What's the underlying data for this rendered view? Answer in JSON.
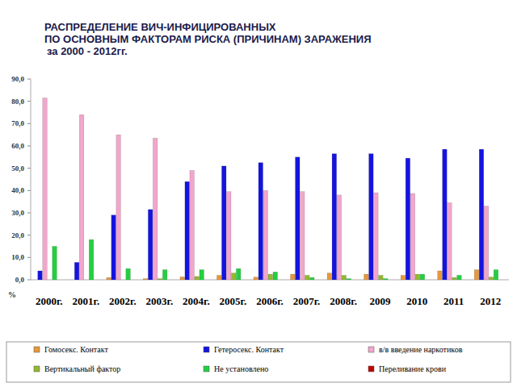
{
  "chart_data": {
    "type": "bar",
    "title": [
      "РАСПРЕДЕЛЕНИЕ ВИЧ-ИНФИЦИРОВАННЫХ",
      "ПО ОСНОВНЫМ ФАКТОРАМ РИСКА (ПРИЧИНАМ)  ЗАРАЖЕНИЯ"
    ],
    "subtitle": "за 2000 - 2012гг.",
    "y_label": "%",
    "categories": [
      "2000г.",
      "2001г.",
      "2002г.",
      "2003г.",
      "2004г.",
      "2005г.",
      "2006г.",
      "2007г.",
      "2008г.",
      "2009",
      "2010",
      "2011",
      "2012"
    ],
    "series": [
      {
        "name": "Гомосекс. Контакт",
        "color": "#e8983c",
        "values": [
          0,
          0,
          1,
          0.5,
          1.3,
          2,
          1.2,
          2.5,
          3,
          2.5,
          2,
          4,
          4.5
        ]
      },
      {
        "name": "Гетеросекс. Контакт",
        "color": "#1414e0",
        "values": [
          4,
          7.8,
          29,
          31.5,
          44,
          51,
          52.5,
          55,
          56.5,
          56.5,
          54.5,
          58.5,
          58.5
        ]
      },
      {
        "name": "в/в введение наркотиков",
        "color": "#f2a6cc",
        "values": [
          81.5,
          74,
          65,
          63.5,
          49,
          39.5,
          40,
          39.5,
          38,
          39,
          38.7,
          34.5,
          33
        ]
      },
      {
        "name": "Вертикальный фактор",
        "color": "#94b830",
        "values": [
          0,
          0,
          0,
          0.5,
          1.5,
          3,
          2.5,
          2,
          2,
          2,
          2.5,
          1,
          1.2
        ]
      },
      {
        "name": "Не установлено",
        "color": "#22d040",
        "values": [
          15,
          18,
          5,
          4.5,
          4.5,
          5,
          3.5,
          1,
          0.5,
          0.5,
          2.5,
          2,
          4.5
        ]
      },
      {
        "name": "Переливание крови",
        "color": "#c00000",
        "values": [
          0,
          0,
          0,
          0,
          0,
          0,
          0,
          0,
          0,
          0,
          0,
          0,
          0
        ]
      }
    ],
    "ylim": [
      0,
      90
    ],
    "yticks": [
      {
        "value": 0,
        "label": "0,0"
      },
      {
        "value": 10,
        "label": "10,0"
      },
      {
        "value": 20,
        "label": "20,0"
      },
      {
        "value": 30,
        "label": "30,0"
      },
      {
        "value": 40,
        "label": "40,0"
      },
      {
        "value": 50,
        "label": "50,0"
      },
      {
        "value": 60,
        "label": "60,0"
      },
      {
        "value": 70,
        "label": "70,0"
      },
      {
        "value": 80,
        "label": "80,0"
      },
      {
        "value": 90,
        "label": "90,0"
      }
    ],
    "grid": false,
    "legend": "bottom"
  }
}
